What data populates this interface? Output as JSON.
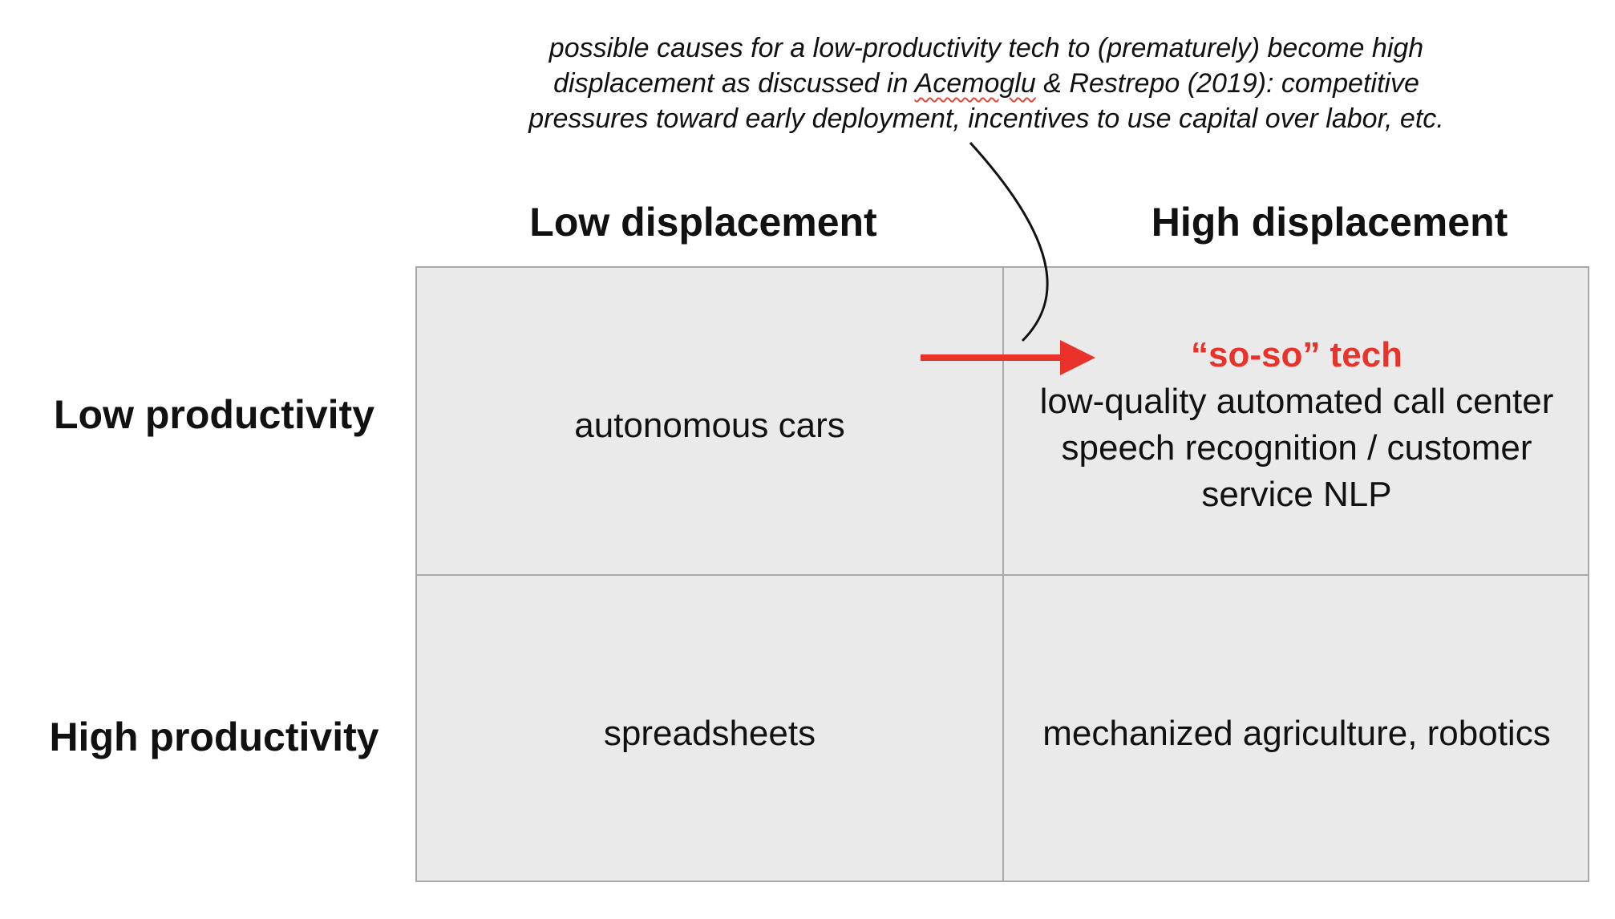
{
  "annotation": {
    "line1": "possible causes for a low-productivity tech to (prematurely) become high",
    "line2_pre": "displacement as discussed in ",
    "line2_ref": "Acemoglu",
    "line2_post": " & Restrepo (2019): competitive",
    "line3": "pressures toward early deployment, incentives to use capital over labor, etc."
  },
  "columns": {
    "low": "Low displacement",
    "high": "High displacement"
  },
  "rows": {
    "low": "Low productivity",
    "high": "High productivity"
  },
  "cells": {
    "low_prod_low_disp": "autonomous cars",
    "low_prod_high_disp_highlight": "“so-so” tech",
    "low_prod_high_disp_desc": "low-quality automated call center\nspeech recognition / customer\nservice NLP",
    "high_prod_low_disp": "spreadsheets",
    "high_prod_high_disp": "mechanized agriculture, robotics"
  },
  "colors": {
    "accent": "#e8322a",
    "cell_bg": "#eaeaea",
    "grid_line": "#a9a9a9"
  }
}
